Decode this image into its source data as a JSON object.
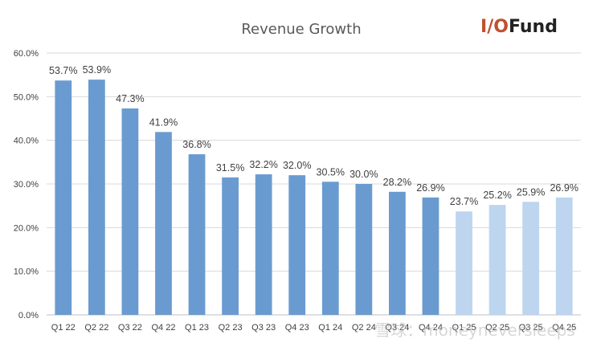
{
  "header": {
    "title": "Revenue Growth",
    "logo": {
      "part1": "I/O",
      "part2": "Fund"
    }
  },
  "watermark": "雪球：moneyneversleeps",
  "colors": {
    "actual": "#6a9bd0",
    "forecast": "#bdd5ee",
    "logo_primary": "#c0512f",
    "logo_secondary": "#222222",
    "grid": "#d9d9d9"
  },
  "chart_data": {
    "type": "bar",
    "title": "Revenue Growth",
    "xlabel": "",
    "ylabel": "",
    "ylim": [
      0,
      60
    ],
    "yticks": [
      "0.0%",
      "10.0%",
      "20.0%",
      "30.0%",
      "40.0%",
      "50.0%",
      "60.0%"
    ],
    "grid": true,
    "legend": "none",
    "categories": [
      "Q1 22",
      "Q2 22",
      "Q3 22",
      "Q4 22",
      "Q1 23",
      "Q2 23",
      "Q3 23",
      "Q4 23",
      "Q1 24",
      "Q2 24",
      "Q3 24",
      "Q4 24",
      "Q1 25",
      "Q2 25",
      "Q3 25",
      "Q4 25"
    ],
    "values": [
      53.7,
      53.9,
      47.3,
      41.9,
      36.8,
      31.5,
      32.2,
      32.0,
      30.5,
      30.0,
      28.2,
      26.9,
      23.7,
      25.2,
      25.9,
      26.9
    ],
    "labels": [
      "53.7%",
      "53.9%",
      "47.3%",
      "41.9%",
      "36.8%",
      "31.5%",
      "32.2%",
      "32.0%",
      "30.5%",
      "30.0%",
      "28.2%",
      "26.9%",
      "23.7%",
      "25.2%",
      "25.9%",
      "26.9%"
    ],
    "forecast": [
      false,
      false,
      false,
      false,
      false,
      false,
      false,
      false,
      false,
      false,
      false,
      false,
      true,
      true,
      true,
      true
    ]
  }
}
